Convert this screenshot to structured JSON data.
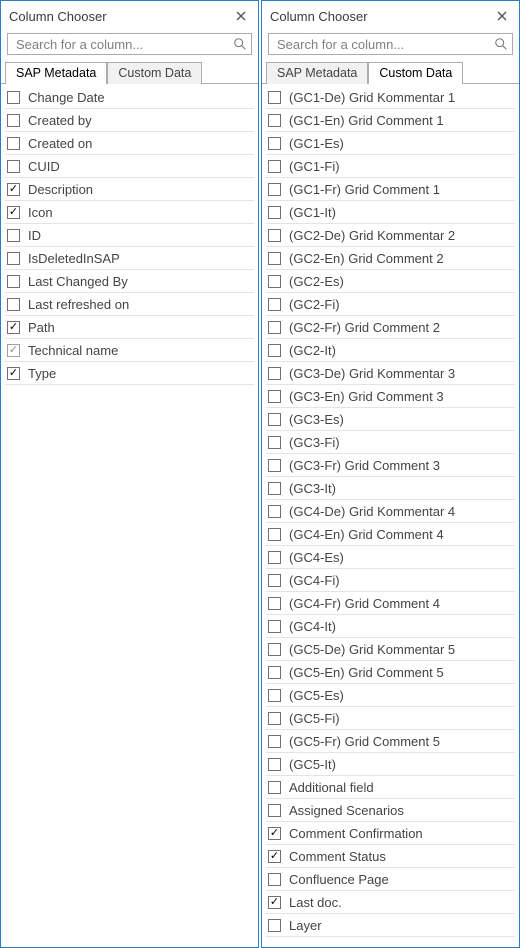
{
  "left": {
    "title": "Column Chooser",
    "search_placeholder": "Search for a column...",
    "tabs": [
      {
        "label": "SAP Metadata",
        "active": true
      },
      {
        "label": "Custom Data",
        "active": false
      }
    ],
    "items": [
      {
        "label": "Change Date",
        "checked": false,
        "disabled": false
      },
      {
        "label": "Created by",
        "checked": false,
        "disabled": false
      },
      {
        "label": "Created on",
        "checked": false,
        "disabled": false
      },
      {
        "label": "CUID",
        "checked": false,
        "disabled": false
      },
      {
        "label": "Description",
        "checked": true,
        "disabled": false
      },
      {
        "label": "Icon",
        "checked": true,
        "disabled": false
      },
      {
        "label": "ID",
        "checked": false,
        "disabled": false
      },
      {
        "label": "IsDeletedInSAP",
        "checked": false,
        "disabled": false
      },
      {
        "label": "Last Changed By",
        "checked": false,
        "disabled": false
      },
      {
        "label": "Last refreshed on",
        "checked": false,
        "disabled": false
      },
      {
        "label": "Path",
        "checked": true,
        "disabled": false
      },
      {
        "label": "Technical name",
        "checked": true,
        "disabled": true
      },
      {
        "label": "Type",
        "checked": true,
        "disabled": false
      }
    ]
  },
  "right": {
    "title": "Column Chooser",
    "search_placeholder": "Search for a column...",
    "tabs": [
      {
        "label": "SAP Metadata",
        "active": false
      },
      {
        "label": "Custom Data",
        "active": true
      }
    ],
    "items": [
      {
        "label": "(GC1-De) Grid Kommentar 1",
        "checked": false
      },
      {
        "label": "(GC1-En) Grid Comment 1",
        "checked": false
      },
      {
        "label": "(GC1-Es)",
        "checked": false
      },
      {
        "label": "(GC1-Fi)",
        "checked": false
      },
      {
        "label": "(GC1-Fr) Grid Comment 1",
        "checked": false
      },
      {
        "label": "(GC1-It)",
        "checked": false
      },
      {
        "label": "(GC2-De) Grid Kommentar 2",
        "checked": false
      },
      {
        "label": "(GC2-En) Grid Comment 2",
        "checked": false
      },
      {
        "label": "(GC2-Es)",
        "checked": false
      },
      {
        "label": "(GC2-Fi)",
        "checked": false
      },
      {
        "label": "(GC2-Fr) Grid Comment 2",
        "checked": false
      },
      {
        "label": "(GC2-It)",
        "checked": false
      },
      {
        "label": "(GC3-De) Grid Kommentar 3",
        "checked": false
      },
      {
        "label": "(GC3-En) Grid Comment 3",
        "checked": false
      },
      {
        "label": "(GC3-Es)",
        "checked": false
      },
      {
        "label": "(GC3-Fi)",
        "checked": false
      },
      {
        "label": "(GC3-Fr) Grid Comment 3",
        "checked": false
      },
      {
        "label": "(GC3-It)",
        "checked": false
      },
      {
        "label": "(GC4-De) Grid Kommentar 4",
        "checked": false
      },
      {
        "label": "(GC4-En) Grid Comment 4",
        "checked": false
      },
      {
        "label": "(GC4-Es)",
        "checked": false
      },
      {
        "label": "(GC4-Fi)",
        "checked": false
      },
      {
        "label": "(GC4-Fr) Grid Comment 4",
        "checked": false
      },
      {
        "label": "(GC4-It)",
        "checked": false
      },
      {
        "label": "(GC5-De) Grid Kommentar 5",
        "checked": false
      },
      {
        "label": "(GC5-En) Grid Comment 5",
        "checked": false
      },
      {
        "label": "(GC5-Es)",
        "checked": false
      },
      {
        "label": "(GC5-Fi)",
        "checked": false
      },
      {
        "label": "(GC5-Fr) Grid Comment 5",
        "checked": false
      },
      {
        "label": "(GC5-It)",
        "checked": false
      },
      {
        "label": "Additional field",
        "checked": false
      },
      {
        "label": "Assigned Scenarios",
        "checked": false
      },
      {
        "label": "Comment Confirmation",
        "checked": true
      },
      {
        "label": "Comment Status",
        "checked": true
      },
      {
        "label": "Confluence Page",
        "checked": false
      },
      {
        "label": "Last doc.",
        "checked": true
      },
      {
        "label": "Layer",
        "checked": false
      }
    ]
  }
}
